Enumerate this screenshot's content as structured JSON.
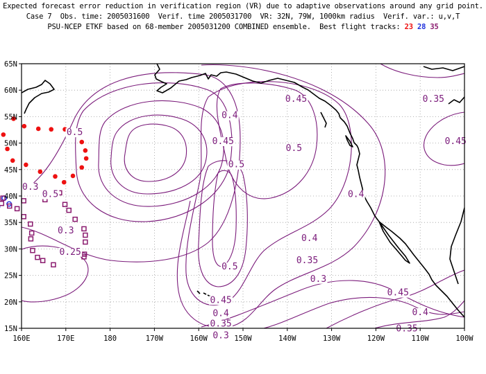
{
  "header": {
    "line1": "Expected forecast error reduction in verification region (VR) due to adaptive observations around any grid point.",
    "line2": "Case 7  Obs. time: 2005031600  Verif. time 2005031700  VR: 32N, 79W, 1000km radius  Verif. var.: u,v,T",
    "line3": "PSU-NCEP ETKF based on 68-member 2005031200 COMBINED ensemble.  Best flight tracks:",
    "tracks": [
      {
        "label": "23",
        "color": "#ee1111"
      },
      {
        "label": "28",
        "color": "#2233dd"
      },
      {
        "label": "35",
        "color": "#8a1a6e"
      }
    ]
  },
  "axes": {
    "lon_labels": [
      "160E",
      "170E",
      "180",
      "170W",
      "160W",
      "150W",
      "140W",
      "130W",
      "120W",
      "110W",
      "100W"
    ],
    "lat_labels": [
      "65N",
      "60N",
      "55N",
      "50N",
      "45N",
      "40N",
      "35N",
      "30N",
      "25N",
      "20N",
      "15N"
    ],
    "lon_range": [
      160,
      260
    ],
    "lat_range": [
      15,
      65
    ],
    "grid": "dotted"
  },
  "colors": {
    "contour": "#7a1a7a",
    "coast": "#000000",
    "grid": "#9a9a9a"
  },
  "contour_labels": [
    {
      "text": "0.45",
      "lon": 222,
      "lat": 57.8
    },
    {
      "text": "0.35",
      "lon": 253,
      "lat": 57.8
    },
    {
      "text": "0.5",
      "lon": 172,
      "lat": 51.5
    },
    {
      "text": "0.4",
      "lon": 207,
      "lat": 54.7
    },
    {
      "text": "0.45",
      "lon": 205.5,
      "lat": 49.8
    },
    {
      "text": "0.5",
      "lon": 221.5,
      "lat": 48.5
    },
    {
      "text": "0.45",
      "lon": 258,
      "lat": 49.8
    },
    {
      "text": "0.5",
      "lon": 208.5,
      "lat": 45.4
    },
    {
      "text": "0.3",
      "lon": 162,
      "lat": 41.2
    },
    {
      "text": "0.5",
      "lon": 166.5,
      "lat": 39.8
    },
    {
      "text": "0.4",
      "lon": 235.5,
      "lat": 39.8
    },
    {
      "text": "0.3",
      "lon": 170,
      "lat": 32.9
    },
    {
      "text": "0.25",
      "lon": 171,
      "lat": 28.9
    },
    {
      "text": "0.4",
      "lon": 225,
      "lat": 31.5
    },
    {
      "text": "0.35",
      "lon": 224.5,
      "lat": 27.3
    },
    {
      "text": "0.5",
      "lon": 207,
      "lat": 26.1
    },
    {
      "text": "0.3",
      "lon": 227,
      "lat": 23.8
    },
    {
      "text": "0.45",
      "lon": 205,
      "lat": 19.8
    },
    {
      "text": "0.45",
      "lon": 245,
      "lat": 21.2
    },
    {
      "text": "0.4",
      "lon": 205,
      "lat": 17.3
    },
    {
      "text": "0.4",
      "lon": 250,
      "lat": 17.5
    },
    {
      "text": "0.35",
      "lon": 205,
      "lat": 15.3
    },
    {
      "text": "0.35",
      "lon": 247,
      "lat": 14.4
    },
    {
      "text": "0.3",
      "lon": 205,
      "lat": 13.1
    }
  ],
  "flight_tracks": [
    {
      "name": "23",
      "marker": "dot",
      "points": [
        [
          174.6,
          47.1
        ],
        [
          174.4,
          48.6
        ],
        [
          173.6,
          50.2
        ],
        [
          172.3,
          52.0
        ],
        [
          169.8,
          52.6
        ],
        [
          166.7,
          52.6
        ],
        [
          163.8,
          52.7
        ],
        [
          160.6,
          53.2
        ],
        [
          158.2,
          54.6
        ],
        [
          154.5,
          54.5
        ],
        [
          152.7,
          55.8
        ],
        [
          155.9,
          51.6
        ],
        [
          156.8,
          48.9
        ],
        [
          158.0,
          46.7
        ],
        [
          161.0,
          45.9
        ],
        [
          164.2,
          44.6
        ],
        [
          167.6,
          43.7
        ],
        [
          169.6,
          42.6
        ],
        [
          171.6,
          43.8
        ],
        [
          173.6,
          45.4
        ]
      ]
    },
    {
      "name": "28",
      "marker": "circle",
      "points": [
        [
          149.6,
          57.6
        ],
        [
          149.2,
          56.0
        ],
        [
          147.7,
          55.0
        ],
        [
          148.2,
          52.8
        ],
        [
          149.0,
          51.6
        ],
        [
          147.5,
          50.1
        ],
        [
          150.3,
          48.6
        ],
        [
          147.4,
          47.1
        ],
        [
          145.8,
          45.0
        ],
        [
          147.7,
          43.7
        ],
        [
          145.6,
          42.3
        ],
        [
          145.3,
          40.0
        ],
        [
          146.2,
          38.0
        ],
        [
          147.7,
          37.0
        ],
        [
          149.3,
          35.5
        ],
        [
          151.8,
          36.8
        ],
        [
          154.6,
          38.0
        ],
        [
          157.2,
          38.5
        ],
        [
          156.1,
          39.6
        ],
        [
          154.2,
          40.9
        ],
        [
          154.3,
          44.1
        ],
        [
          154.3,
          46.6
        ]
      ]
    },
    {
      "name": "35",
      "marker": "square",
      "points": [
        [
          153.0,
          40.3
        ],
        [
          155.8,
          39.6
        ],
        [
          160.5,
          39.1
        ],
        [
          165.3,
          39.3
        ],
        [
          168.6,
          40.6
        ],
        [
          169.8,
          38.4
        ],
        [
          170.7,
          37.3
        ],
        [
          172.1,
          35.6
        ],
        [
          174.1,
          33.8
        ],
        [
          174.4,
          32.6
        ],
        [
          174.4,
          31.3
        ],
        [
          174.2,
          29.0
        ],
        [
          174.1,
          28.5
        ],
        [
          167.2,
          27.0
        ],
        [
          164.8,
          27.8
        ],
        [
          163.6,
          28.4
        ],
        [
          162.5,
          29.7
        ],
        [
          162.1,
          31.9
        ],
        [
          162.3,
          33.0
        ],
        [
          162.0,
          34.7
        ],
        [
          160.5,
          36.1
        ],
        [
          159.0,
          37.6
        ],
        [
          157.3,
          38.1
        ],
        [
          155.5,
          38.6
        ]
      ]
    }
  ]
}
